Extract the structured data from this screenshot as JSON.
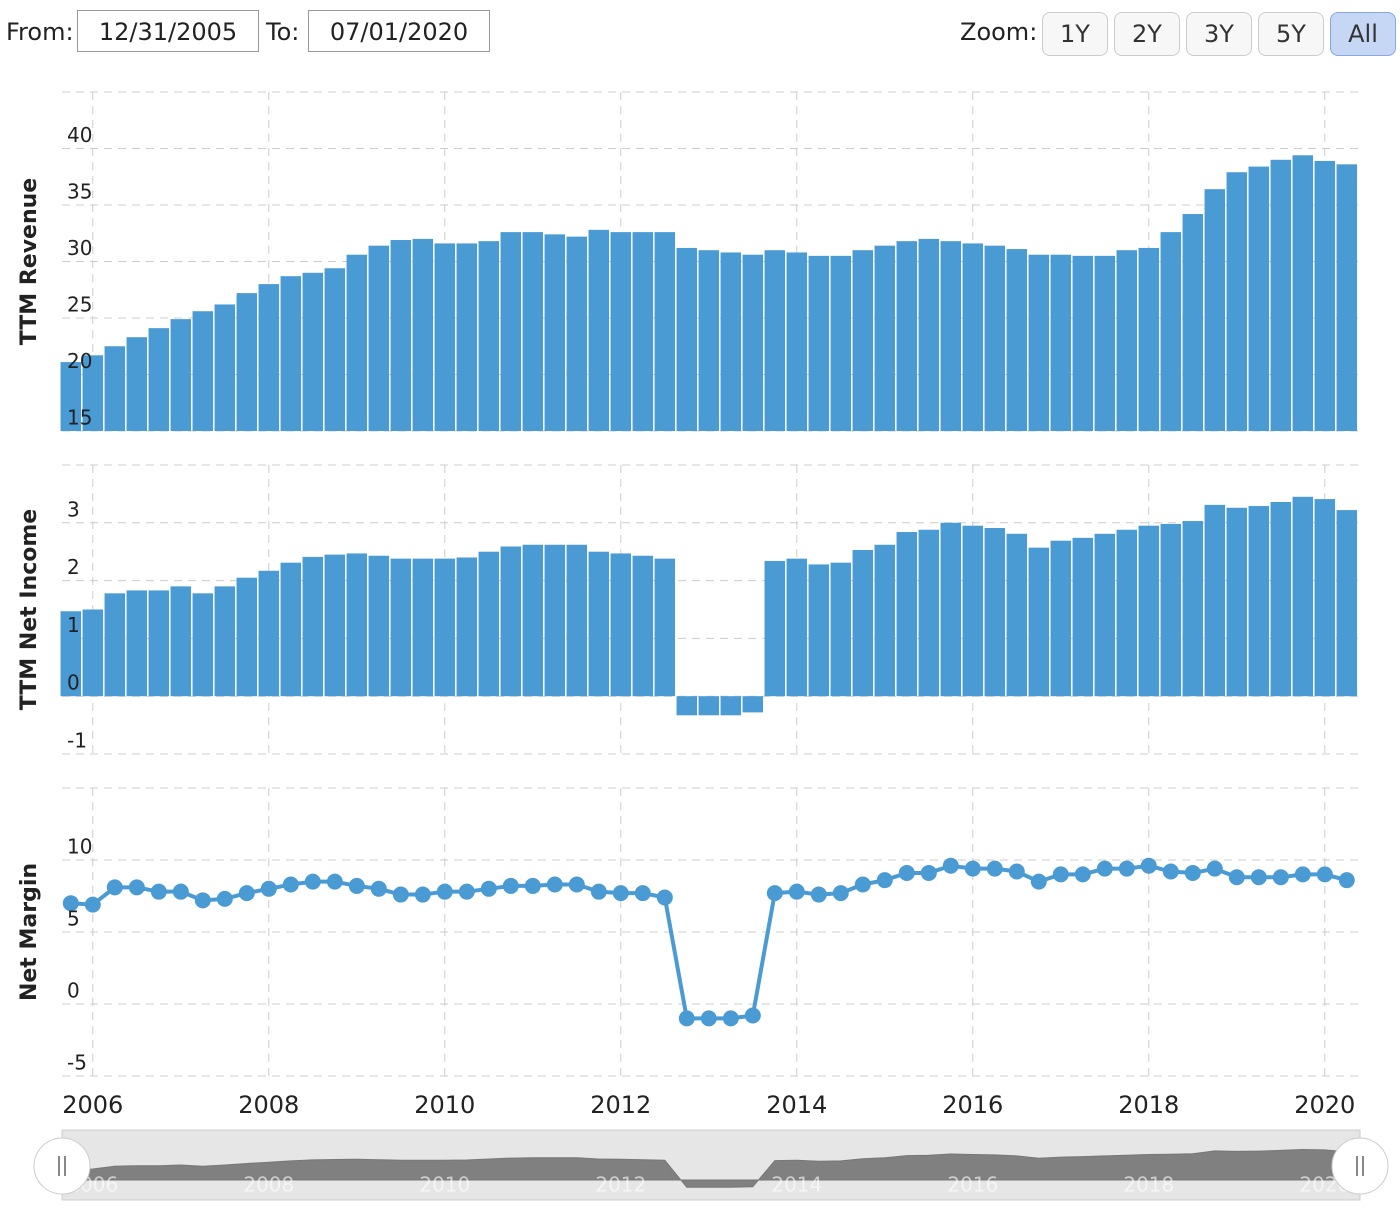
{
  "controls": {
    "from_label": "From:",
    "from_value": "12/31/2005",
    "to_label": "To:",
    "to_value": "07/01/2020",
    "zoom_label": "Zoom:",
    "zoom_buttons": [
      "1Y",
      "2Y",
      "3Y",
      "5Y",
      "All"
    ],
    "active_zoom": "All"
  },
  "chart_data": [
    {
      "type": "bar",
      "y_label": "TTM Revenue",
      "color": "#4a9ad4",
      "grid": true,
      "x": [
        2005.75,
        2006,
        2006.25,
        2006.5,
        2006.75,
        2007,
        2007.25,
        2007.5,
        2007.75,
        2008,
        2008.25,
        2008.5,
        2008.75,
        2009,
        2009.25,
        2009.5,
        2009.75,
        2010,
        2010.25,
        2010.5,
        2010.75,
        2011,
        2011.25,
        2011.5,
        2011.75,
        2012,
        2012.25,
        2012.5,
        2012.75,
        2013,
        2013.25,
        2013.5,
        2013.75,
        2014,
        2014.25,
        2014.5,
        2014.75,
        2015,
        2015.25,
        2015.5,
        2015.75,
        2016,
        2016.25,
        2016.5,
        2016.75,
        2017,
        2017.25,
        2017.5,
        2017.75,
        2018,
        2018.25,
        2018.5,
        2018.75,
        2019,
        2019.25,
        2019.5,
        2019.75,
        2020,
        2020.25
      ],
      "values": [
        21.1,
        21.7,
        22.5,
        23.3,
        24.1,
        24.9,
        25.6,
        26.2,
        27.2,
        28.0,
        28.7,
        29.0,
        29.4,
        30.6,
        31.4,
        31.9,
        32.0,
        31.6,
        31.6,
        31.8,
        32.6,
        32.6,
        32.4,
        32.2,
        32.8,
        32.6,
        32.6,
        32.6,
        31.2,
        31.0,
        30.8,
        30.6,
        31.0,
        30.8,
        30.5,
        30.5,
        31.0,
        31.4,
        31.8,
        32.0,
        31.8,
        31.6,
        31.4,
        31.1,
        30.6,
        30.6,
        30.5,
        30.5,
        31.0,
        31.2,
        32.6,
        34.2,
        36.4,
        37.9,
        38.4,
        39.0,
        39.4,
        38.9,
        38.6
      ],
      "ylim": [
        15,
        45
      ],
      "yticks": [
        15,
        20,
        25,
        30,
        35,
        40
      ],
      "xlim": [
        2005.65,
        2020.4
      ],
      "xticks": [
        2006,
        2008,
        2010,
        2012,
        2014,
        2016,
        2018,
        2020
      ]
    },
    {
      "type": "bar",
      "y_label": "TTM Net Income",
      "color": "#4a9ad4",
      "grid": true,
      "x": [
        2005.75,
        2006,
        2006.25,
        2006.5,
        2006.75,
        2007,
        2007.25,
        2007.5,
        2007.75,
        2008,
        2008.25,
        2008.5,
        2008.75,
        2009,
        2009.25,
        2009.5,
        2009.75,
        2010,
        2010.25,
        2010.5,
        2010.75,
        2011,
        2011.25,
        2011.5,
        2011.75,
        2012,
        2012.25,
        2012.5,
        2012.75,
        2013,
        2013.25,
        2013.5,
        2013.75,
        2014,
        2014.25,
        2014.5,
        2014.75,
        2015,
        2015.25,
        2015.5,
        2015.75,
        2016,
        2016.25,
        2016.5,
        2016.75,
        2017,
        2017.25,
        2017.5,
        2017.75,
        2018,
        2018.25,
        2018.5,
        2018.75,
        2019,
        2019.25,
        2019.5,
        2019.75,
        2020,
        2020.25
      ],
      "values": [
        1.47,
        1.5,
        1.78,
        1.83,
        1.83,
        1.9,
        1.78,
        1.9,
        2.05,
        2.17,
        2.31,
        2.41,
        2.45,
        2.47,
        2.43,
        2.38,
        2.38,
        2.38,
        2.4,
        2.5,
        2.59,
        2.62,
        2.62,
        2.62,
        2.5,
        2.47,
        2.43,
        2.38,
        -0.33,
        -0.33,
        -0.33,
        -0.28,
        2.34,
        2.38,
        2.28,
        2.31,
        2.53,
        2.62,
        2.84,
        2.88,
        3.0,
        2.95,
        2.91,
        2.81,
        2.57,
        2.69,
        2.74,
        2.81,
        2.88,
        2.95,
        2.98,
        3.03,
        3.31,
        3.26,
        3.29,
        3.36,
        3.45,
        3.41,
        3.22
      ],
      "ylim": [
        -1,
        4
      ],
      "yticks": [
        -1,
        0,
        1,
        2,
        3
      ],
      "xlim": [
        2005.65,
        2020.4
      ],
      "xticks": [
        2006,
        2008,
        2010,
        2012,
        2014,
        2016,
        2018,
        2020
      ]
    },
    {
      "type": "line",
      "y_label": "Net Margin",
      "color": "#4a9ad4",
      "grid": true,
      "x": [
        2005.75,
        2006,
        2006.25,
        2006.5,
        2006.75,
        2007,
        2007.25,
        2007.5,
        2007.75,
        2008,
        2008.25,
        2008.5,
        2008.75,
        2009,
        2009.25,
        2009.5,
        2009.75,
        2010,
        2010.25,
        2010.5,
        2010.75,
        2011,
        2011.25,
        2011.5,
        2011.75,
        2012,
        2012.25,
        2012.5,
        2012.75,
        2013,
        2013.25,
        2013.5,
        2013.75,
        2014,
        2014.25,
        2014.5,
        2014.75,
        2015,
        2015.25,
        2015.5,
        2015.75,
        2016,
        2016.25,
        2016.5,
        2016.75,
        2017,
        2017.25,
        2017.5,
        2017.75,
        2018,
        2018.25,
        2018.5,
        2018.75,
        2019,
        2019.25,
        2019.5,
        2019.75,
        2020,
        2020.25
      ],
      "values": [
        7.0,
        6.9,
        8.1,
        8.1,
        7.8,
        7.8,
        7.2,
        7.3,
        7.7,
        8.0,
        8.3,
        8.5,
        8.5,
        8.2,
        8.0,
        7.6,
        7.6,
        7.8,
        7.8,
        8.0,
        8.2,
        8.2,
        8.3,
        8.3,
        7.8,
        7.7,
        7.7,
        7.4,
        -1.0,
        -1.0,
        -1.0,
        -0.8,
        7.7,
        7.8,
        7.6,
        7.7,
        8.3,
        8.6,
        9.1,
        9.1,
        9.6,
        9.4,
        9.4,
        9.2,
        8.5,
        9.0,
        9.0,
        9.4,
        9.4,
        9.6,
        9.2,
        9.1,
        9.4,
        8.8,
        8.8,
        8.8,
        9.0,
        9.0,
        8.6
      ],
      "ylim": [
        -5,
        15
      ],
      "yticks": [
        -5,
        0,
        5,
        10
      ],
      "xlim": [
        2005.65,
        2020.4
      ],
      "xticks": [
        2006,
        2008,
        2010,
        2012,
        2014,
        2016,
        2018,
        2020
      ]
    }
  ]
}
